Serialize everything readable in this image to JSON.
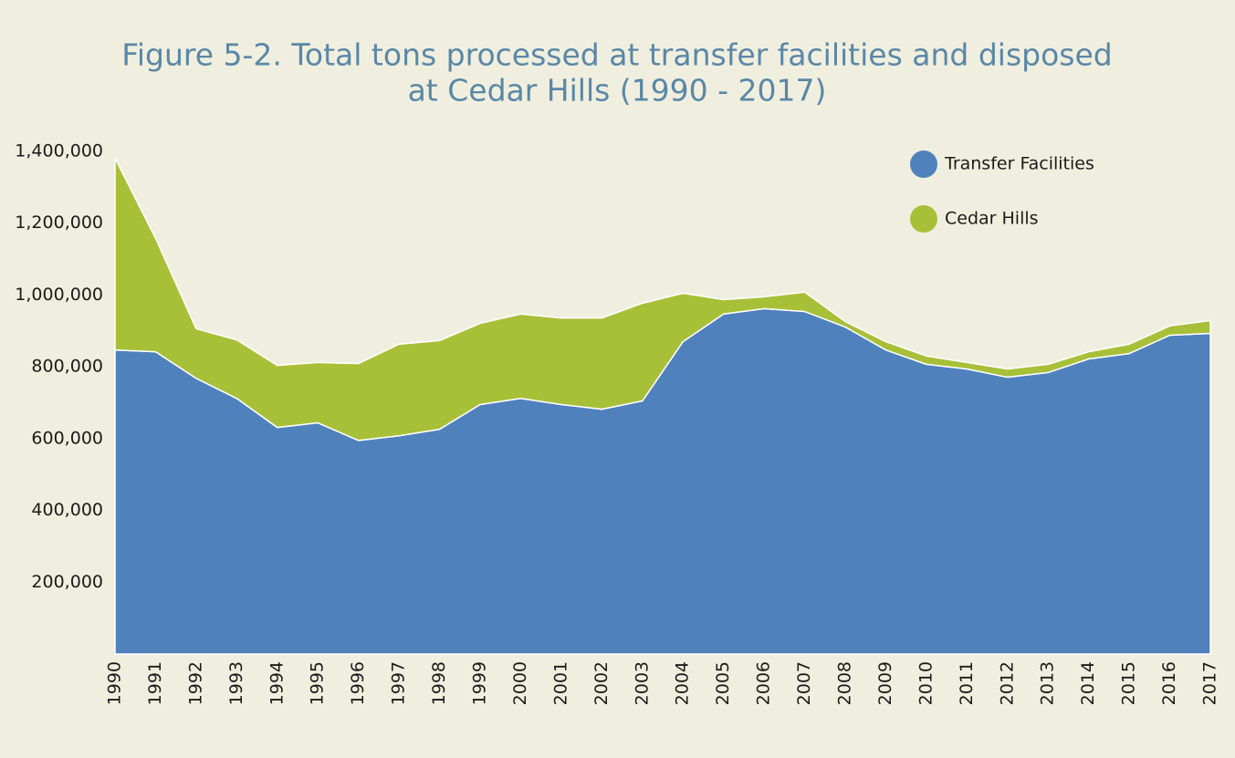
{
  "chart_data": {
    "type": "stacked-area",
    "title": [
      "Figure 5-2. Total tons processed at transfer facilities and disposed",
      "at Cedar Hills (1990 - 2017)"
    ],
    "categories": [
      "1990",
      "1991",
      "1992",
      "1993",
      "1994",
      "1995",
      "1996",
      "1997",
      "1998",
      "1999",
      "2000",
      "2001",
      "2002",
      "2003",
      "2004",
      "2005",
      "2006",
      "2007",
      "2008",
      "2009",
      "2010",
      "2011",
      "2012",
      "2013",
      "2014",
      "2015",
      "2016",
      "2017"
    ],
    "series": [
      {
        "name": "Transfer Facilities",
        "color": "#4f81bd",
        "values": [
          847000,
          842000,
          768000,
          712000,
          631000,
          644000,
          595000,
          608000,
          626000,
          695000,
          712000,
          695000,
          682000,
          705000,
          870000,
          947000,
          962000,
          954000,
          911000,
          847000,
          807000,
          794000,
          771000,
          784000,
          822000,
          837000,
          888000,
          893000
        ]
      },
      {
        "name": "Cedar Hills",
        "color": "#a8bf38",
        "values": [
          534000,
          316000,
          138000,
          163000,
          173000,
          168000,
          214000,
          255000,
          247000,
          226000,
          235000,
          241000,
          254000,
          272000,
          135000,
          40000,
          33000,
          54000,
          15000,
          23000,
          23000,
          18000,
          23000,
          23000,
          20000,
          26000,
          26000,
          36000
        ]
      }
    ],
    "ylim": [
      0,
      1400000
    ],
    "yticks": [
      {
        "value": 200000,
        "label": "200,000"
      },
      {
        "value": 400000,
        "label": "400,000"
      },
      {
        "value": 600000,
        "label": "600,000"
      },
      {
        "value": 800000,
        "label": "800,000"
      },
      {
        "value": 1000000,
        "label": "1,000,000"
      },
      {
        "value": 1200000,
        "label": "1,200,000"
      },
      {
        "value": 1400000,
        "label": "1,400,000"
      }
    ],
    "legend": "top-right"
  }
}
